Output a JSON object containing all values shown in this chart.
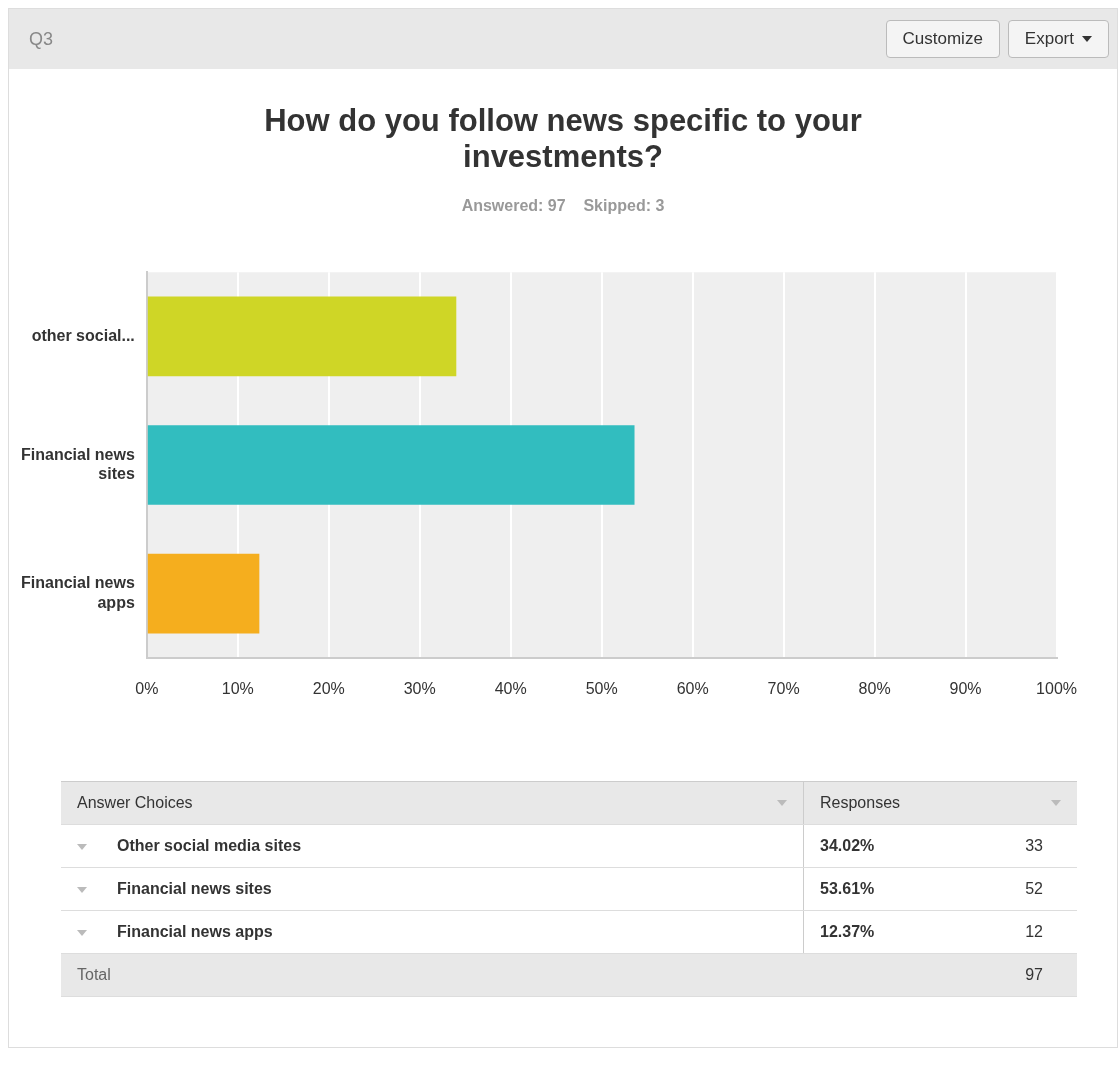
{
  "chart_data": {
    "type": "bar",
    "orientation": "horizontal",
    "title": "How do you follow news specific to your investments?",
    "subtitle": "Answered: 97    Skipped: 3",
    "categories": [
      "other social...",
      "Financial news sites",
      "Financial news apps"
    ],
    "values": [
      34.02,
      53.61,
      12.37
    ],
    "colors": [
      "#cfd626",
      "#32bdbf",
      "#f5ae1e"
    ],
    "xlim": [
      0,
      100
    ],
    "xticks": [
      {
        "value": 0,
        "label": "0%"
      },
      {
        "value": 10,
        "label": "10%"
      },
      {
        "value": 20,
        "label": "20%"
      },
      {
        "value": 30,
        "label": "30%"
      },
      {
        "value": 40,
        "label": "40%"
      },
      {
        "value": 50,
        "label": "50%"
      },
      {
        "value": 60,
        "label": "60%"
      },
      {
        "value": 70,
        "label": "70%"
      },
      {
        "value": 80,
        "label": "80%"
      },
      {
        "value": 90,
        "label": "90%"
      },
      {
        "value": 100,
        "label": "100%"
      }
    ],
    "grid": "x",
    "legend": false,
    "annotations": [
      "Q3",
      "Customize",
      "Export",
      "Answer Choices",
      "Responses",
      "Other social media sites",
      "Financial news sites",
      "Financial news apps",
      "34.02%",
      "53.61%",
      "12.37%",
      "33",
      "52",
      "12",
      "Total",
      "97"
    ]
  }
}
